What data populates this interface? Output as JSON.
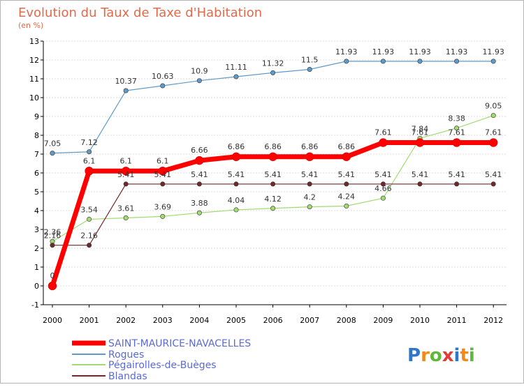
{
  "title": "Evolution du Taux de Taxe d'Habitation",
  "subtitle": "(en %)",
  "logo_text": "Proxiti",
  "chart_data": {
    "type": "line",
    "title": "Evolution du Taux de Taxe d'Habitation",
    "ylabel": "(en %)",
    "xlabel": "",
    "x": [
      "2000",
      "2001",
      "2002",
      "2003",
      "2004",
      "2005",
      "2006",
      "2007",
      "2008",
      "2009",
      "2010",
      "2011",
      "2012"
    ],
    "ylim": [
      -1,
      13
    ],
    "yticks": [
      "-1",
      "0",
      "1",
      "2",
      "3",
      "4",
      "5",
      "6",
      "7",
      "8",
      "9",
      "10",
      "11",
      "12",
      "13"
    ],
    "grid": "horizontal",
    "legend_position": "bottom-left",
    "series": [
      {
        "name": "SAINT-MAURICE-NAVACELLES",
        "color": "#ff0000",
        "values": [
          0,
          6.1,
          6.1,
          6.1,
          6.66,
          6.86,
          6.86,
          6.86,
          6.86,
          7.61,
          7.61,
          7.61,
          7.61
        ],
        "labels": [
          "0",
          "6.1",
          "6.1",
          "6.1",
          "6.66",
          "6.86",
          "6.86",
          "6.86",
          "6.86",
          "7.61",
          "7.61",
          "7.61",
          "7.61"
        ]
      },
      {
        "name": "Rogues",
        "color": "#5f9ac9",
        "values": [
          7.05,
          7.12,
          10.37,
          10.63,
          10.9,
          11.11,
          11.32,
          11.5,
          11.93,
          11.93,
          11.93,
          11.93,
          11.93
        ],
        "labels": [
          "7.05",
          "7.12",
          "10.37",
          "10.63",
          "10.9",
          "11.11",
          "11.32",
          "11.5",
          "11.93",
          "11.93",
          "11.93",
          "11.93",
          "11.93"
        ]
      },
      {
        "name": "Pégairolles-de-Buèges",
        "color": "#a2da73",
        "values": [
          2.36,
          3.54,
          3.61,
          3.69,
          3.88,
          4.04,
          4.12,
          4.2,
          4.24,
          4.66,
          7.84,
          8.38,
          9.05
        ],
        "labels": [
          "2.36",
          "3.54",
          "3.61",
          "3.69",
          "3.88",
          "4.04",
          "4.12",
          "4.2",
          "4.24",
          "4.66",
          "7.84",
          "8.38",
          "9.05"
        ]
      },
      {
        "name": "Blandas",
        "color": "#6e2a2a",
        "values": [
          2.16,
          2.16,
          5.41,
          5.41,
          5.41,
          5.41,
          5.41,
          5.41,
          5.41,
          5.41,
          5.41,
          5.41,
          5.41
        ],
        "labels": [
          "2.16",
          "2.16",
          "5.41",
          "5.41",
          "5.41",
          "5.41",
          "5.41",
          "5.41",
          "5.41",
          "5.41",
          "5.41",
          "5.41",
          "5.41"
        ]
      }
    ]
  }
}
